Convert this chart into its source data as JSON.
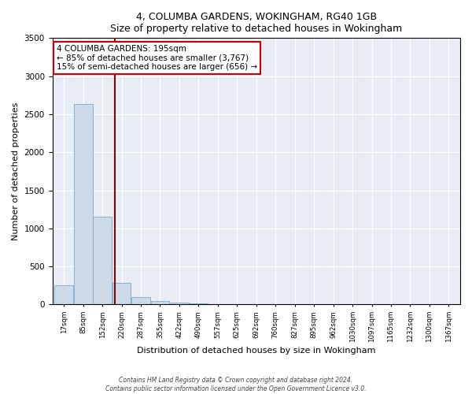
{
  "title1": "4, COLUMBA GARDENS, WOKINGHAM, RG40 1GB",
  "title2": "Size of property relative to detached houses in Wokingham",
  "xlabel": "Distribution of detached houses by size in Wokingham",
  "ylabel": "Number of detached properties",
  "bar_color": "#ccd9e8",
  "bar_edge_color": "#7aaac8",
  "vline_color": "#8b0000",
  "annotation_title": "4 COLUMBA GARDENS: 195sqm",
  "annotation_line1": "← 85% of detached houses are smaller (3,767)",
  "annotation_line2": "15% of semi-detached houses are larger (656) →",
  "categories": [
    "17sqm",
    "85sqm",
    "152sqm",
    "220sqm",
    "287sqm",
    "355sqm",
    "422sqm",
    "490sqm",
    "557sqm",
    "625sqm",
    "692sqm",
    "760sqm",
    "827sqm",
    "895sqm",
    "962sqm",
    "1030sqm",
    "1097sqm",
    "1165sqm",
    "1232sqm",
    "1300sqm",
    "1367sqm"
  ],
  "values": [
    250,
    2630,
    1150,
    280,
    100,
    50,
    30,
    15,
    4,
    2,
    1,
    1,
    0,
    0,
    0,
    0,
    0,
    0,
    0,
    0,
    0
  ],
  "bin_centers": [
    0,
    1,
    2,
    3,
    4,
    5,
    6,
    7,
    8,
    9,
    10,
    11,
    12,
    13,
    14,
    15,
    16,
    17,
    18,
    19,
    20
  ],
  "vline_pos": 2.65,
  "ylim": [
    0,
    3500
  ],
  "yticks": [
    0,
    500,
    1000,
    1500,
    2000,
    2500,
    3000,
    3500
  ],
  "background_color": "#e8edf5",
  "footer1": "Contains HM Land Registry data © Crown copyright and database right 2024.",
  "footer2": "Contains public sector information licensed under the Open Government Licence v3.0."
}
